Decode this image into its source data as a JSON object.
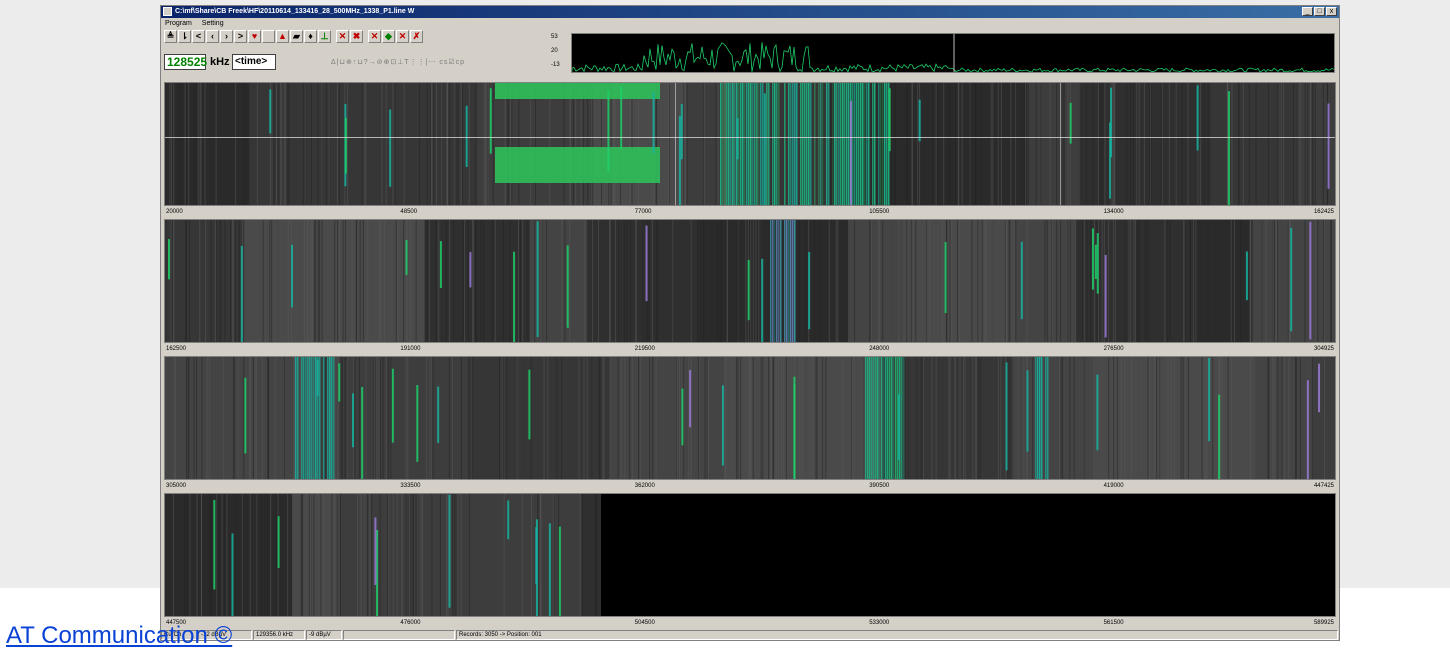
{
  "window": {
    "title": "C:\\mf\\Share\\CB Freek\\HF\\20110614_133416_28_500MHz_1338_P1.line W",
    "controls": [
      "_",
      "□",
      "x"
    ]
  },
  "menu": [
    "Program",
    "Setting"
  ],
  "toolbar": {
    "buttons": [
      {
        "name": "record-button",
        "glyph": "≜",
        "tone": ""
      },
      {
        "name": "step-button",
        "glyph": "⇂",
        "tone": ""
      },
      {
        "name": "prev-far-button",
        "glyph": "<",
        "tone": ""
      },
      {
        "name": "prev-button",
        "glyph": "‹",
        "tone": ""
      },
      {
        "name": "next-button",
        "glyph": "›",
        "tone": ""
      },
      {
        "name": "next-far-button",
        "glyph": ">",
        "tone": ""
      },
      {
        "name": "marker-button",
        "glyph": "♥",
        "tone": "red"
      },
      {
        "name": "blank-button",
        "glyph": "",
        "tone": ""
      },
      {
        "name": "palette-button",
        "glyph": "▲",
        "tone": "red"
      },
      {
        "name": "open-button",
        "glyph": "▰",
        "tone": ""
      },
      {
        "name": "find-button",
        "glyph": "♦",
        "tone": ""
      },
      {
        "name": "level-button",
        "glyph": "⊥",
        "tone": "green"
      },
      {
        "name": "cut-button",
        "glyph": "✕",
        "tone": "red",
        "gap": true
      },
      {
        "name": "cut-all-button",
        "glyph": "✖",
        "tone": "red"
      },
      {
        "name": "delete-button",
        "glyph": "✕",
        "tone": "red",
        "gap": true
      },
      {
        "name": "delete-marked-button",
        "glyph": "◆",
        "tone": "green"
      },
      {
        "name": "delete-range-button",
        "glyph": "✕",
        "tone": "red"
      },
      {
        "name": "delete-other-button",
        "glyph": "✗",
        "tone": "red"
      }
    ],
    "frequency_value": "128525",
    "frequency_unit": "kHz",
    "time_value": "<time>",
    "secondary_tools": "Δ|⊔⊕↑⊔?→⊘⊕⊡⊥T⋮⋮|⋯ cs☑cp"
  },
  "spectrum": {
    "scale_labels": [
      "53",
      "20",
      "-13"
    ]
  },
  "waterfall_rows": [
    {
      "ticks": [
        "20000",
        "48500",
        "77000",
        "105500",
        "134000",
        "162425"
      ]
    },
    {
      "ticks": [
        "162500",
        "191000",
        "219500",
        "248000",
        "276500",
        "304925"
      ]
    },
    {
      "ticks": [
        "305000",
        "333500",
        "362000",
        "390500",
        "419000",
        "447425"
      ]
    },
    {
      "ticks": [
        "447500",
        "476000",
        "504500",
        "533000",
        "561500",
        "589925"
      ]
    }
  ],
  "statusbar": {
    "fields": [
      "CurCh",
      "-12 dBµV",
      "129356.0 kHz",
      "-9 dBµV",
      "",
      "Records: 3050 -> Position: 001"
    ]
  },
  "caption": "AT Communication ©",
  "colors": {
    "signal_green": "#1fcf6a",
    "signal_teal": "#16b3a0",
    "signal_violet": "#9a7ad8",
    "title_blue": "#0a246a",
    "link_blue": "#0a42d6"
  }
}
